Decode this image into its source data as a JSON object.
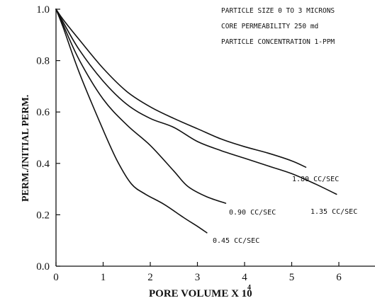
{
  "chart_data": {
    "type": "line",
    "xlabel": "PORE VOLUME X 10",
    "xlabel_exponent": "4",
    "ylabel": "PERM./INITIAL PERM.",
    "xlim": [
      0,
      6.6
    ],
    "ylim": [
      0,
      1.0
    ],
    "x_ticks": [
      "0",
      "1",
      "2",
      "3",
      "4",
      "5",
      "6"
    ],
    "y_ticks": [
      "0.0",
      "0.2",
      "0.4",
      "0.6",
      "0.8",
      "1.0"
    ],
    "annotations": [
      "PARTICLE SIZE 0 TO 3 MICRONS",
      "CORE PERMEABILITY 250 md",
      "PARTICLE CONCENTRATION 1-PPM"
    ],
    "series": [
      {
        "name": "1.80 CC/SEC",
        "x": [
          0,
          0.15,
          0.5,
          1.0,
          1.5,
          2.0,
          2.5,
          3.0,
          3.5,
          4.0,
          4.5,
          5.0,
          5.3
        ],
        "y": [
          1.0,
          0.96,
          0.88,
          0.77,
          0.68,
          0.62,
          0.575,
          0.535,
          0.495,
          0.465,
          0.44,
          0.41,
          0.385
        ]
      },
      {
        "name": "1.35 CC/SEC",
        "x": [
          0,
          0.15,
          0.5,
          1.0,
          1.5,
          2.0,
          2.5,
          3.0,
          3.5,
          4.0,
          4.5,
          5.0,
          5.5,
          5.95
        ],
        "y": [
          1.0,
          0.95,
          0.84,
          0.72,
          0.63,
          0.575,
          0.54,
          0.485,
          0.45,
          0.42,
          0.39,
          0.36,
          0.32,
          0.28
        ]
      },
      {
        "name": "0.90 CC/SEC",
        "x": [
          0,
          0.15,
          0.5,
          1.0,
          1.5,
          2.0,
          2.5,
          2.8,
          3.2,
          3.6
        ],
        "y": [
          1.0,
          0.94,
          0.8,
          0.65,
          0.55,
          0.47,
          0.37,
          0.31,
          0.27,
          0.245
        ]
      },
      {
        "name": "0.45 CC/SEC",
        "x": [
          0,
          0.15,
          0.5,
          1.0,
          1.3,
          1.6,
          1.9,
          2.3,
          2.7,
          3.0,
          3.2
        ],
        "y": [
          1.0,
          0.93,
          0.75,
          0.53,
          0.41,
          0.32,
          0.28,
          0.24,
          0.19,
          0.155,
          0.13
        ]
      }
    ]
  }
}
